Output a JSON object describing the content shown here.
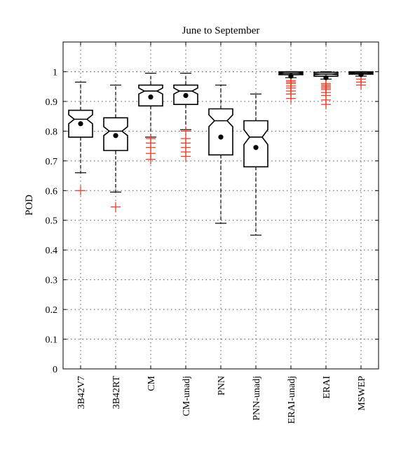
{
  "chart_data": {
    "type": "boxplot",
    "title": "June to September",
    "xlabel": "",
    "ylabel": "POD",
    "ylim": [
      0,
      1.1
    ],
    "yticks": [
      0,
      0.1,
      0.2,
      0.3,
      0.4,
      0.5,
      0.6,
      0.7,
      0.8,
      0.9,
      1
    ],
    "ytick_labels": [
      "0",
      "0.1",
      "0.2",
      "0.3",
      "0.4",
      "0.5",
      "0.6",
      "0.7",
      "0.8",
      "0.9",
      "1"
    ],
    "grid": true,
    "notched": true,
    "categories": [
      "3B42V7",
      "3B42RT",
      "CM",
      "CM-unadj",
      "PNN",
      "PNN-unadj",
      "ERAI-unadj",
      "ERAI",
      "MSWEP"
    ],
    "boxes": [
      {
        "whisker_low": 0.66,
        "q1": 0.78,
        "median": 0.84,
        "q3": 0.87,
        "whisker_high": 0.965,
        "mean": 0.825,
        "notch_low": 0.825,
        "notch_high": 0.855,
        "outliers": [
          0.6
        ]
      },
      {
        "whisker_low": 0.595,
        "q1": 0.735,
        "median": 0.8,
        "q3": 0.845,
        "whisker_high": 0.955,
        "mean": 0.785,
        "notch_low": 0.785,
        "notch_high": 0.815,
        "outliers": [
          0.545
        ]
      },
      {
        "whisker_low": 0.78,
        "q1": 0.885,
        "median": 0.935,
        "q3": 0.955,
        "whisker_high": 0.995,
        "mean": 0.915,
        "notch_low": 0.925,
        "notch_high": 0.945,
        "outliers": [
          0.705,
          0.725,
          0.745,
          0.76,
          0.775
        ]
      },
      {
        "whisker_low": 0.805,
        "q1": 0.89,
        "median": 0.935,
        "q3": 0.955,
        "whisker_high": 0.995,
        "mean": 0.92,
        "notch_low": 0.925,
        "notch_high": 0.945,
        "outliers": [
          0.715,
          0.73,
          0.745,
          0.76,
          0.775,
          0.8
        ]
      },
      {
        "whisker_low": 0.49,
        "q1": 0.72,
        "median": 0.835,
        "q3": 0.875,
        "whisker_high": 0.955,
        "mean": 0.78,
        "notch_low": 0.815,
        "notch_high": 0.855,
        "outliers": []
      },
      {
        "whisker_low": 0.45,
        "q1": 0.68,
        "median": 0.78,
        "q3": 0.835,
        "whisker_high": 0.925,
        "mean": 0.745,
        "notch_low": 0.755,
        "notch_high": 0.805,
        "outliers": []
      },
      {
        "whisker_low": 0.98,
        "q1": 0.99,
        "median": 0.995,
        "q3": 1.0,
        "whisker_high": 1.0,
        "mean": 0.985,
        "notch_low": 0.993,
        "notch_high": 0.997,
        "outliers": [
          0.91,
          0.925,
          0.935,
          0.945,
          0.952,
          0.96,
          0.965,
          0.97
        ]
      },
      {
        "whisker_low": 0.975,
        "q1": 0.985,
        "median": 0.992,
        "q3": 0.998,
        "whisker_high": 1.0,
        "mean": 0.98,
        "notch_low": 0.99,
        "notch_high": 0.994,
        "outliers": [
          0.89,
          0.905,
          0.92,
          0.93,
          0.94,
          0.945,
          0.95,
          0.955,
          0.96
        ]
      },
      {
        "whisker_low": 0.985,
        "q1": 0.992,
        "median": 0.996,
        "q3": 1.0,
        "whisker_high": 1.0,
        "mean": 0.99,
        "notch_low": 0.994,
        "notch_high": 0.998,
        "outliers": [
          0.955,
          0.965,
          0.975
        ]
      }
    ],
    "colors": {
      "box": "#000000",
      "outlier": "#e8402a",
      "grid": "#555555"
    }
  }
}
